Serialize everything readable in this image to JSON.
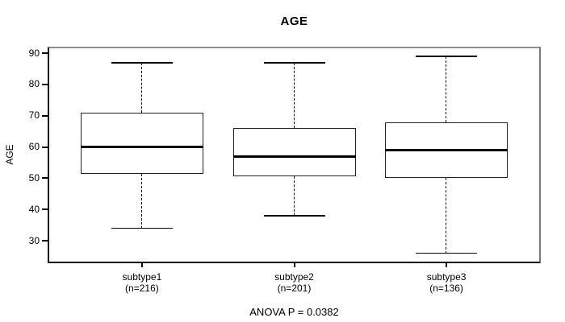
{
  "figure": {
    "title": "AGE",
    "y_axis_label": "AGE",
    "footnote": "ANOVA P = 0.0382"
  },
  "chart_data": {
    "type": "box",
    "title": "AGE",
    "xlabel": "",
    "ylabel": "AGE",
    "yticks": [
      30,
      40,
      50,
      60,
      70,
      80,
      90
    ],
    "ylim": [
      22.8,
      92.1
    ],
    "xlim": [
      0.38,
      3.62
    ],
    "grid": false,
    "legend": null,
    "footnote": "ANOVA P = 0.0382",
    "groups": [
      {
        "x": 1,
        "label": "subtype1",
        "sublabel": "(n=216)",
        "n": 216,
        "whisker_low": 34,
        "q1": 51.5,
        "median": 60,
        "q3": 71,
        "whisker_high": 87
      },
      {
        "x": 2,
        "label": "subtype2",
        "sublabel": "(n=201)",
        "n": 201,
        "whisker_low": 38,
        "q1": 50.5,
        "median": 57,
        "q3": 66,
        "whisker_high": 87
      },
      {
        "x": 3,
        "label": "subtype3",
        "sublabel": "(n=136)",
        "n": 136,
        "whisker_low": 26,
        "q1": 50,
        "median": 59,
        "q3": 68,
        "whisker_high": 89
      }
    ]
  },
  "colors": {
    "line": "#000000",
    "text": "#000000",
    "background": "#ffffff",
    "frame_top": "#8e8e8e"
  }
}
